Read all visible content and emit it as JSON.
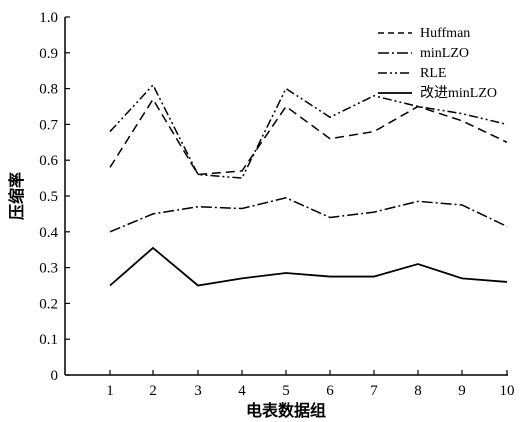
{
  "chart_data": {
    "type": "line",
    "title": "",
    "xlabel": "电表数据组",
    "ylabel": "压缩率",
    "x": [
      1,
      2,
      3,
      4,
      5,
      6,
      7,
      8,
      9,
      10
    ],
    "xlim": [
      0,
      10
    ],
    "ylim": [
      0,
      1.0
    ],
    "yticks": [
      "0",
      "0.1",
      "0.2",
      "0.3",
      "0.4",
      "0.5",
      "0.6",
      "0.7",
      "0.8",
      "0.9",
      "1.0"
    ],
    "xticks": [
      "1",
      "2",
      "3",
      "4",
      "5",
      "6",
      "7",
      "8",
      "9",
      "10"
    ],
    "grid": false,
    "legend_position": "top-right",
    "series": [
      {
        "name": "Huffman",
        "style": "dashed",
        "values": [
          0.58,
          0.77,
          0.56,
          0.57,
          0.75,
          0.66,
          0.68,
          0.75,
          0.71,
          0.65
        ]
      },
      {
        "name": "minLZO",
        "style": "dashdot",
        "values": [
          0.4,
          0.45,
          0.47,
          0.465,
          0.495,
          0.44,
          0.455,
          0.485,
          0.475,
          0.415
        ]
      },
      {
        "name": "RLE",
        "style": "dashdotdot",
        "values": [
          0.68,
          0.81,
          0.56,
          0.55,
          0.8,
          0.72,
          0.78,
          0.75,
          0.73,
          0.7
        ]
      },
      {
        "name": "改进minLZO",
        "style": "solid",
        "values": [
          0.25,
          0.355,
          0.25,
          0.27,
          0.285,
          0.275,
          0.275,
          0.31,
          0.27,
          0.26
        ]
      }
    ]
  }
}
